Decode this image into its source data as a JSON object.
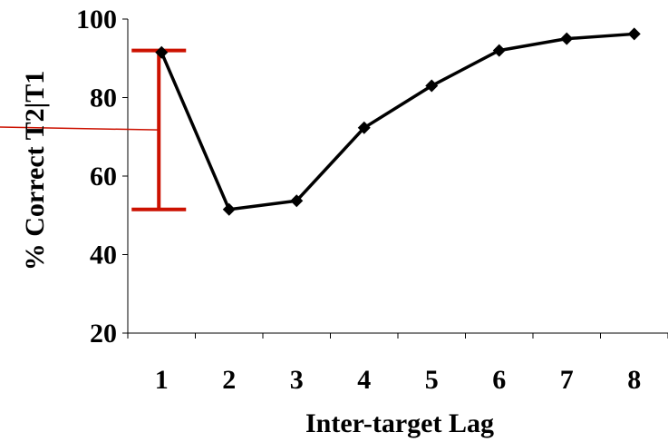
{
  "chart_data": {
    "type": "line",
    "title": "",
    "xlabel": "Inter-target Lag",
    "ylabel": "% Correct T2|T1",
    "categories": [
      "1",
      "2",
      "3",
      "4",
      "5",
      "6",
      "7",
      "8"
    ],
    "series": [
      {
        "values": [
          91.5,
          51.5,
          53.7,
          72.3,
          83.0,
          92.0,
          95.0,
          96.2
        ],
        "color": "#000000",
        "marker": "diamond"
      }
    ],
    "ylim": [
      20,
      100
    ],
    "yticks": [
      "20",
      "40",
      "60",
      "80",
      "100"
    ],
    "grid": false,
    "legend": "none",
    "annotation": {
      "type": "range-bracket",
      "at_category": "1",
      "from": 51.5,
      "to": 92,
      "color": "#cc1100"
    }
  }
}
